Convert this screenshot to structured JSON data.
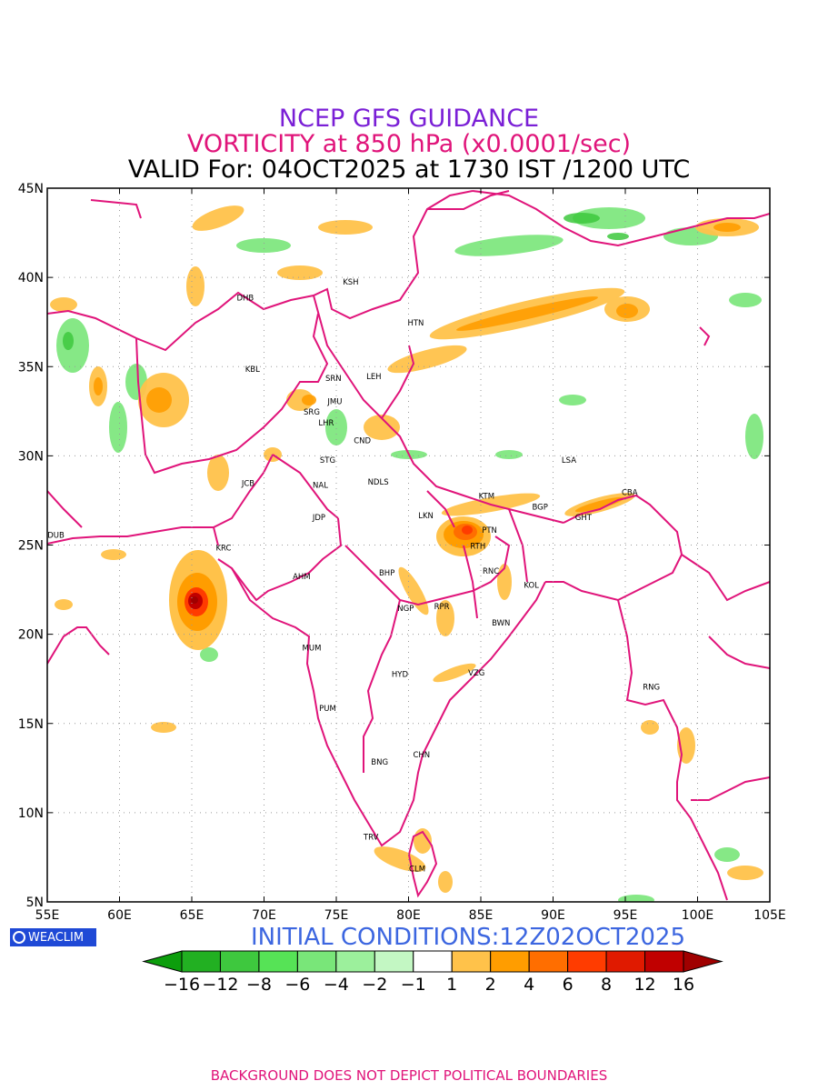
{
  "titles": {
    "line1": "NCEP GFS GUIDANCE",
    "line2": "VORTICITY at 850 hPa (x0.0001/sec)",
    "line3": "VALID For: 04OCT2025 at 1730 IST /1200 UTC"
  },
  "map": {
    "lon_ticks": [
      "55E",
      "60E",
      "65E",
      "70E",
      "75E",
      "80E",
      "85E",
      "90E",
      "95E",
      "100E",
      "105E"
    ],
    "lat_ticks": [
      "45N",
      "40N",
      "35N",
      "30N",
      "25N",
      "20N",
      "15N",
      "10N",
      "5N"
    ],
    "cities": [
      {
        "name": "KSH",
        "lon": 76.0,
        "lat": 39.6
      },
      {
        "name": "DHB",
        "lon": 68.7,
        "lat": 38.7
      },
      {
        "name": "HTN",
        "lon": 80.5,
        "lat": 37.3
      },
      {
        "name": "KBL",
        "lon": 69.2,
        "lat": 34.7
      },
      {
        "name": "SRN",
        "lon": 74.8,
        "lat": 34.2
      },
      {
        "name": "LEH",
        "lon": 77.6,
        "lat": 34.3
      },
      {
        "name": "JMU",
        "lon": 74.9,
        "lat": 32.9
      },
      {
        "name": "SRG",
        "lon": 73.3,
        "lat": 32.3
      },
      {
        "name": "LHR",
        "lon": 74.3,
        "lat": 31.7
      },
      {
        "name": "CND",
        "lon": 76.8,
        "lat": 30.7
      },
      {
        "name": "STG",
        "lon": 74.4,
        "lat": 29.6
      },
      {
        "name": "LSA",
        "lon": 91.1,
        "lat": 29.6
      },
      {
        "name": "JCB",
        "lon": 68.9,
        "lat": 28.3
      },
      {
        "name": "NAL",
        "lon": 73.9,
        "lat": 28.2
      },
      {
        "name": "NDLS",
        "lon": 77.9,
        "lat": 28.4
      },
      {
        "name": "KTM",
        "lon": 85.4,
        "lat": 27.6
      },
      {
        "name": "CBA",
        "lon": 95.3,
        "lat": 27.8
      },
      {
        "name": "BGP",
        "lon": 89.1,
        "lat": 27.0
      },
      {
        "name": "LKN",
        "lon": 81.2,
        "lat": 26.5
      },
      {
        "name": "GHT",
        "lon": 92.1,
        "lat": 26.4
      },
      {
        "name": "JDP",
        "lon": 73.8,
        "lat": 26.4
      },
      {
        "name": "PTN",
        "lon": 85.6,
        "lat": 25.7
      },
      {
        "name": "DUB",
        "lon": 55.6,
        "lat": 25.4
      },
      {
        "name": "RTH",
        "lon": 84.8,
        "lat": 24.8
      },
      {
        "name": "KRC",
        "lon": 67.2,
        "lat": 24.7
      },
      {
        "name": "BHP",
        "lon": 78.5,
        "lat": 23.3
      },
      {
        "name": "RNC",
        "lon": 85.7,
        "lat": 23.4
      },
      {
        "name": "AHM",
        "lon": 72.6,
        "lat": 23.1
      },
      {
        "name": "KOL",
        "lon": 88.5,
        "lat": 22.6
      },
      {
        "name": "NGP",
        "lon": 79.8,
        "lat": 21.3
      },
      {
        "name": "RPR",
        "lon": 82.3,
        "lat": 21.4
      },
      {
        "name": "BWN",
        "lon": 86.4,
        "lat": 20.5
      },
      {
        "name": "MUM",
        "lon": 73.3,
        "lat": 19.1
      },
      {
        "name": "VZG",
        "lon": 84.7,
        "lat": 17.7
      },
      {
        "name": "HYD",
        "lon": 79.4,
        "lat": 17.6
      },
      {
        "name": "RNG",
        "lon": 96.8,
        "lat": 16.9
      },
      {
        "name": "PUM",
        "lon": 74.4,
        "lat": 15.7
      },
      {
        "name": "CHN",
        "lon": 80.9,
        "lat": 13.1
      },
      {
        "name": "BNG",
        "lon": 78.0,
        "lat": 12.7
      },
      {
        "name": "TRV",
        "lon": 77.4,
        "lat": 8.5
      },
      {
        "name": "CLM",
        "lon": 80.6,
        "lat": 6.7
      }
    ]
  },
  "legend": {
    "labels": [
      "−16",
      "−12",
      "−8",
      "−6",
      "−4",
      "−2",
      "−1",
      "1",
      "2",
      "4",
      "6",
      "8",
      "12",
      "16"
    ],
    "colors": [
      "#0c9e0c",
      "#22b022",
      "#3ec83e",
      "#56e356",
      "#79e679",
      "#9cf09c",
      "#c3f7c3",
      "#ffffff",
      "#ffc24a",
      "#ff9d00",
      "#ff6e00",
      "#ff3c00",
      "#e01a00",
      "#c00000",
      "#a00000"
    ]
  },
  "colors": {
    "boundary": "#e0147a",
    "cyclone_core": "#c00000"
  },
  "branding": {
    "badge": "WEACLIM",
    "initial": "INITIAL CONDITIONS:12Z02OCT2025"
  },
  "footer": "BACKGROUND DOES NOT DEPICT POLITICAL BOUNDARIES"
}
